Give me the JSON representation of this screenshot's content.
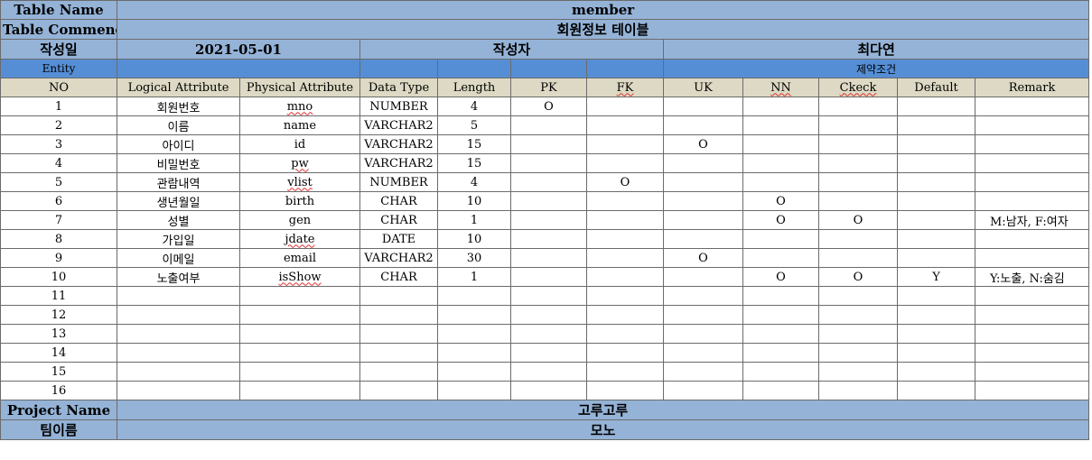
{
  "meta": {
    "table_name_label": "Table Name",
    "table_name": "member",
    "table_comment_label": "Table Commend",
    "table_comment": "회원정보 테이블",
    "created_label": "작성일",
    "created": "2021-05-01",
    "author_label": "작성자",
    "author": "최다연"
  },
  "entity": {
    "label": "Entity",
    "constraints_label": "제약조건"
  },
  "columns": [
    "NO",
    "Logical Attribute",
    "Physical Attribute",
    "Data Type",
    "Length",
    "PK",
    "FK",
    "UK",
    "NN",
    "Ckeck",
    "Default",
    "Remark"
  ],
  "rows": [
    [
      "1",
      "회원번호",
      "mno",
      "NUMBER",
      "4",
      "O",
      "",
      "",
      "",
      "",
      "",
      ""
    ],
    [
      "2",
      "이름",
      "name",
      "VARCHAR2",
      "5",
      "",
      "",
      "",
      "",
      "",
      "",
      ""
    ],
    [
      "3",
      "아이디",
      "id",
      "VARCHAR2",
      "15",
      "",
      "",
      "O",
      "",
      "",
      "",
      ""
    ],
    [
      "4",
      "비밀번호",
      "pw",
      "VARCHAR2",
      "15",
      "",
      "",
      "",
      "",
      "",
      "",
      ""
    ],
    [
      "5",
      "관람내역",
      "vlist",
      "NUMBER",
      "4",
      "",
      "O",
      "",
      "",
      "",
      "",
      ""
    ],
    [
      "6",
      "생년월일",
      "birth",
      "CHAR",
      "10",
      "",
      "",
      "",
      "O",
      "",
      "",
      ""
    ],
    [
      "7",
      "성별",
      "gen",
      "CHAR",
      "1",
      "",
      "",
      "",
      "O",
      "O",
      "",
      "M:남자, F:여자"
    ],
    [
      "8",
      "가입일",
      "jdate",
      "DATE",
      "10",
      "",
      "",
      "",
      "",
      "",
      "",
      ""
    ],
    [
      "9",
      "이메일",
      "email",
      "VARCHAR2",
      "30",
      "",
      "",
      "O",
      "",
      "",
      "",
      ""
    ],
    [
      "10",
      "노출여부",
      "isShow",
      "CHAR",
      "1",
      "",
      "",
      "",
      "O",
      "O",
      "Y",
      "Y:노출, N:숨김"
    ],
    [
      "11",
      "",
      "",
      "",
      "",
      "",
      "",
      "",
      "",
      "",
      "",
      ""
    ],
    [
      "12",
      "",
      "",
      "",
      "",
      "",
      "",
      "",
      "",
      "",
      "",
      ""
    ],
    [
      "13",
      "",
      "",
      "",
      "",
      "",
      "",
      "",
      "",
      "",
      "",
      ""
    ],
    [
      "14",
      "",
      "",
      "",
      "",
      "",
      "",
      "",
      "",
      "",
      "",
      ""
    ],
    [
      "15",
      "",
      "",
      "",
      "",
      "",
      "",
      "",
      "",
      "",
      "",
      ""
    ],
    [
      "16",
      "",
      "",
      "",
      "",
      "",
      "",
      "",
      "",
      "",
      "",
      ""
    ]
  ],
  "footer": {
    "project_label": "Project Name",
    "project": "고루고루",
    "team_label": "팀이름",
    "team": "모노"
  }
}
